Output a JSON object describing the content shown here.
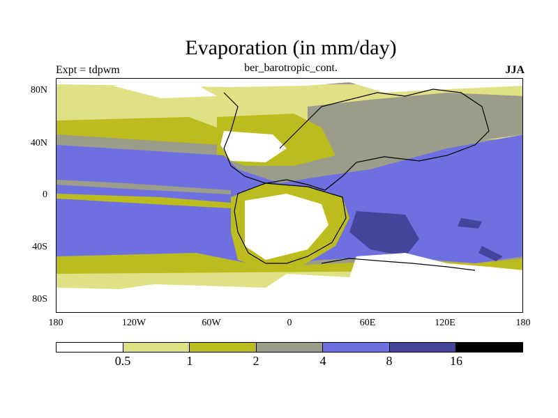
{
  "title": "Evaporation (in mm/day)",
  "subtitle": "ber_barotropic_cont.",
  "left_label": "Expt = tdpwm",
  "right_label": "JJA",
  "y_axis": {
    "ticks": [
      "80N",
      "40N",
      "0",
      "40S",
      "80S"
    ]
  },
  "x_axis": {
    "ticks": [
      "180",
      "120W",
      "60W",
      "0",
      "60E",
      "120E",
      "180"
    ]
  },
  "colorbar": {
    "levels": [
      "0.5",
      "1",
      "2",
      "4",
      "8",
      "16"
    ],
    "colors": [
      "#ffffff",
      "#e0e084",
      "#bcbc1e",
      "#9c9c8a",
      "#6f70e0",
      "#44449a",
      "#000000"
    ]
  }
}
